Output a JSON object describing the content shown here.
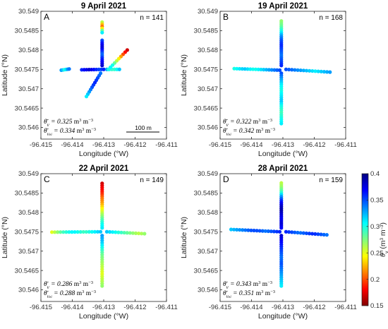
{
  "figure": {
    "colorbar": {
      "label": "θv (m³ m⁻³)",
      "min": 0.15,
      "max": 0.4,
      "ticks": [
        "0.4",
        "0.35",
        "0.3",
        "0.25",
        "0.2",
        "0.15"
      ],
      "colormap": "jet"
    },
    "scale_bar_label": "100 m"
  },
  "chart_data": [
    {
      "type": "scatter",
      "panel": "A",
      "title": "9 April 2021",
      "n_label": "n = 141",
      "xlabel": "Longitude (°W)",
      "ylabel": "Latitude (°N)",
      "xlim": [
        -96.415,
        -96.411
      ],
      "ylim": [
        30.5457,
        30.549
      ],
      "xticks": [
        "-96.415",
        "-96.414",
        "-96.413",
        "-96.412",
        "-96.411"
      ],
      "yticks": [
        "30.549",
        "30.5485",
        "30.548",
        "30.5475",
        "30.547",
        "30.5465",
        "30.546"
      ],
      "stat_mean": "0.325",
      "stat_ei": "0.334",
      "segments": [
        {
          "from": [
            -96.41435,
            30.54748
          ],
          "to": [
            -96.4141,
            30.54751
          ],
          "count": 6,
          "values": [
            0.33,
            0.32,
            0.3,
            0.31,
            0.33,
            0.34
          ]
        },
        {
          "from": [
            -96.4137,
            30.54749
          ],
          "to": [
            -96.413,
            30.5475
          ],
          "count": 10,
          "values": [
            0.36,
            0.37,
            0.38,
            0.37,
            0.36,
            0.35,
            0.36
          ]
        },
        {
          "from": [
            -96.4129,
            30.5475
          ],
          "to": [
            -96.4125,
            30.5475
          ],
          "count": 6,
          "values": [
            0.33,
            0.3,
            0.29,
            0.3,
            0.32
          ]
        },
        {
          "from": [
            -96.41305,
            30.54872
          ],
          "to": [
            -96.41305,
            30.54845
          ],
          "count": 6,
          "values": [
            0.26,
            0.23,
            0.21,
            0.24,
            0.28,
            0.31
          ]
        },
        {
          "from": [
            -96.41305,
            30.54825
          ],
          "to": [
            -96.41305,
            30.5476
          ],
          "count": 14,
          "values": [
            0.35,
            0.37,
            0.38,
            0.36,
            0.34,
            0.36,
            0.37,
            0.38
          ]
        },
        {
          "from": [
            -96.41225,
            30.548
          ],
          "to": [
            -96.41285,
            30.5475
          ],
          "count": 10,
          "values": [
            0.17,
            0.19,
            0.22,
            0.25,
            0.28,
            0.31,
            0.3
          ]
        },
        {
          "from": [
            -96.4131,
            30.5474
          ],
          "to": [
            -96.41355,
            30.5468
          ],
          "count": 11,
          "values": [
            0.34,
            0.35,
            0.36,
            0.35,
            0.33,
            0.31
          ]
        }
      ]
    },
    {
      "type": "scatter",
      "panel": "B",
      "title": "19 April 2021",
      "n_label": "n = 168",
      "xlabel": "Longitude (°W)",
      "ylabel": "Latitude (°N)",
      "xlim": [
        -96.415,
        -96.411
      ],
      "ylim": [
        30.5457,
        30.549
      ],
      "xticks": [
        "-96.415",
        "-96.414",
        "-96.413",
        "-96.412",
        "-96.411"
      ],
      "yticks": [
        "30.549",
        "30.5485",
        "30.548",
        "30.5475",
        "30.547",
        "30.5465",
        "30.546"
      ],
      "stat_mean": "0.322",
      "stat_ei": "0.342",
      "segments": [
        {
          "from": [
            -96.41455,
            30.54752
          ],
          "to": [
            -96.4131,
            30.54748
          ],
          "count": 18,
          "values": [
            0.3,
            0.31,
            0.32,
            0.31,
            0.3,
            0.31,
            0.32,
            0.33,
            0.34,
            0.35
          ]
        },
        {
          "from": [
            -96.4129,
            30.5475
          ],
          "to": [
            -96.4115,
            30.54743
          ],
          "count": 16,
          "values": [
            0.35,
            0.34,
            0.33,
            0.32,
            0.31,
            0.32,
            0.33
          ]
        },
        {
          "from": [
            -96.41305,
            30.54875
          ],
          "to": [
            -96.41305,
            30.5476
          ],
          "count": 24,
          "values": [
            0.27,
            0.28,
            0.3,
            0.33,
            0.35,
            0.36,
            0.35,
            0.34,
            0.35,
            0.36
          ]
        },
        {
          "from": [
            -96.41305,
            30.5474
          ],
          "to": [
            -96.41305,
            30.5461
          ],
          "count": 24,
          "values": [
            0.35,
            0.33,
            0.31,
            0.3,
            0.31,
            0.32,
            0.3,
            0.29,
            0.3,
            0.31
          ]
        }
      ]
    },
    {
      "type": "scatter",
      "panel": "C",
      "title": "22 April 2021",
      "n_label": "n = 149",
      "xlabel": "Longitude (°W)",
      "ylabel": "Latitude (°N)",
      "xlim": [
        -96.415,
        -96.411
      ],
      "ylim": [
        30.5457,
        30.549
      ],
      "xticks": [
        "-96.415",
        "-96.414",
        "-96.413",
        "-96.412",
        "-96.411"
      ],
      "yticks": [
        "30.549",
        "30.5485",
        "30.548",
        "30.5475",
        "30.547",
        "30.5465",
        "30.546"
      ],
      "stat_mean": "0.286",
      "stat_ei": "0.288",
      "segments": [
        {
          "from": [
            -96.41465,
            30.54749
          ],
          "to": [
            -96.4131,
            30.5475
          ],
          "count": 18,
          "values": [
            0.25,
            0.27,
            0.29,
            0.3,
            0.31,
            0.3,
            0.29,
            0.3,
            0.31,
            0.32
          ]
        },
        {
          "from": [
            -96.4129,
            30.5475
          ],
          "to": [
            -96.4117,
            30.54745
          ],
          "count": 14,
          "values": [
            0.32,
            0.31,
            0.3,
            0.29,
            0.28,
            0.27,
            0.26,
            0.27
          ]
        },
        {
          "from": [
            -96.41305,
            30.54875
          ],
          "to": [
            -96.41305,
            30.5476
          ],
          "count": 22,
          "values": [
            0.17,
            0.18,
            0.19,
            0.21,
            0.22,
            0.24,
            0.26,
            0.28,
            0.3,
            0.31
          ]
        },
        {
          "from": [
            -96.41305,
            30.5474
          ],
          "to": [
            -96.41305,
            30.5461
          ],
          "count": 22,
          "values": [
            0.33,
            0.32,
            0.3,
            0.28,
            0.27,
            0.26,
            0.25,
            0.26,
            0.27
          ]
        }
      ]
    },
    {
      "type": "scatter",
      "panel": "D",
      "title": "28 April 2021",
      "n_label": "n = 159",
      "xlabel": "Longitude (°W)",
      "ylabel": "Latitude (°N)",
      "xlim": [
        -96.415,
        -96.411
      ],
      "ylim": [
        30.5457,
        30.549
      ],
      "xticks": [
        "-96.415",
        "-96.414",
        "-96.413",
        "-96.412",
        "-96.411"
      ],
      "yticks": [
        "30.549",
        "30.5485",
        "30.548",
        "30.5475",
        "30.547",
        "30.5465",
        "30.546"
      ],
      "stat_mean": "0.343",
      "stat_ei": "0.351",
      "segments": [
        {
          "from": [
            -96.41465,
            30.54756
          ],
          "to": [
            -96.4131,
            30.5475
          ],
          "count": 18,
          "values": [
            0.32,
            0.33,
            0.34,
            0.35,
            0.35,
            0.34,
            0.35,
            0.36
          ]
        },
        {
          "from": [
            -96.4129,
            30.5475
          ],
          "to": [
            -96.4116,
            30.54742
          ],
          "count": 15,
          "values": [
            0.36,
            0.35,
            0.34,
            0.35,
            0.36,
            0.35,
            0.34
          ]
        },
        {
          "from": [
            -96.41305,
            30.54876
          ],
          "to": [
            -96.41305,
            30.5476
          ],
          "count": 24,
          "values": [
            0.26,
            0.27,
            0.29,
            0.33,
            0.36,
            0.38,
            0.39,
            0.38,
            0.37,
            0.38,
            0.37
          ]
        },
        {
          "from": [
            -96.41305,
            30.5474
          ],
          "to": [
            -96.41305,
            30.5461
          ],
          "count": 24,
          "values": [
            0.38,
            0.37,
            0.36,
            0.35,
            0.34,
            0.35,
            0.34,
            0.33,
            0.32,
            0.31
          ]
        }
      ]
    }
  ]
}
